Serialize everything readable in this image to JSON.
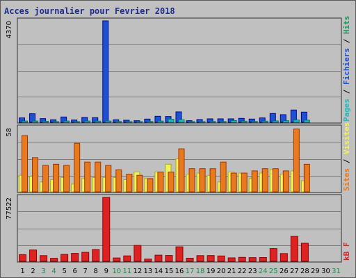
{
  "chart_data": {
    "title": "Acces journalier pour Fevrier 2018",
    "type": "bar",
    "categories": [
      "1",
      "2",
      "3",
      "4",
      "5",
      "6",
      "7",
      "8",
      "9",
      "10",
      "11",
      "12",
      "13",
      "14",
      "15",
      "16",
      "17",
      "18",
      "19",
      "20",
      "21",
      "22",
      "23",
      "24",
      "25",
      "26",
      "27",
      "28",
      "29",
      "30",
      "31"
    ],
    "weekend_days": [
      "3",
      "4",
      "10",
      "11",
      "17",
      "18",
      "24",
      "25",
      "31"
    ],
    "panels": [
      {
        "id": "hits",
        "ymax_label": "4370",
        "ymax": 4370,
        "legend": [
          {
            "text": "Pages",
            "color": "#22bbbb"
          },
          {
            "text": "Fichiers",
            "color": "#1e50d2"
          },
          {
            "text": "Hits",
            "color": "#209a5a"
          }
        ],
        "series": [
          {
            "name": "Hits",
            "color": "#1e50d2",
            "values": [
              190,
              370,
              160,
              110,
              230,
              100,
              210,
              200,
              4370,
              110,
              90,
              70,
              140,
              260,
              250,
              450,
              70,
              120,
              150,
              150,
              150,
              170,
              140,
              190,
              380,
              330,
              530,
              440,
              null,
              null,
              null
            ]
          },
          {
            "name": "Pages",
            "color": "#22bbbb",
            "values": [
              55,
              55,
              45,
              30,
              55,
              25,
              55,
              50,
              55,
              35,
              30,
              25,
              35,
              55,
              135,
              110,
              25,
              30,
              35,
              35,
              75,
              50,
              35,
              50,
              60,
              70,
              100,
              90,
              null,
              null,
              null
            ]
          }
        ]
      },
      {
        "id": "visits",
        "ymax_label": "58",
        "ymax": 58,
        "legend": [
          {
            "text": "Sites",
            "color": "#e87a1e"
          },
          {
            "text": "Visites",
            "color": "#f2f25a"
          }
        ],
        "series": [
          {
            "name": "Visites",
            "color": "#f2f25a",
            "values": [
              15,
              14,
              9,
              11,
              13,
              7,
              12,
              13,
              13,
              13,
              11,
              18,
              12,
              18,
              25,
              30,
              16,
              17,
              15,
              9,
              18,
              17,
              12,
              17,
              20,
              16,
              19,
              10,
              null,
              null,
              null
            ]
          },
          {
            "name": "Sites",
            "color": "#e87a1e",
            "values": [
              51,
              31,
              24,
              25,
              24,
              44,
              27,
              27,
              24,
              20,
              16,
              15,
              12,
              18,
              18,
              39,
              21,
              21,
              21,
              27,
              17,
              17,
              19,
              21,
              21,
              19,
              57,
              25,
              null,
              null,
              null
            ]
          }
        ]
      },
      {
        "id": "kb",
        "ymax_label": "77522",
        "ymax": 77522,
        "legend": [
          {
            "text": "kB F",
            "color": "#dd2222"
          }
        ],
        "series": [
          {
            "name": "kB F",
            "color": "#dd2222",
            "values": [
              8100,
              13800,
              6900,
              3700,
              8400,
              9600,
              10900,
              14300,
              77522,
              4100,
              6600,
              19300,
              2700,
              7500,
              7100,
              17600,
              3800,
              6900,
              7000,
              6500,
              4200,
              4800,
              4500,
              4600,
              15500,
              9400,
              30200,
              21900,
              null,
              null,
              null
            ]
          }
        ]
      }
    ]
  }
}
